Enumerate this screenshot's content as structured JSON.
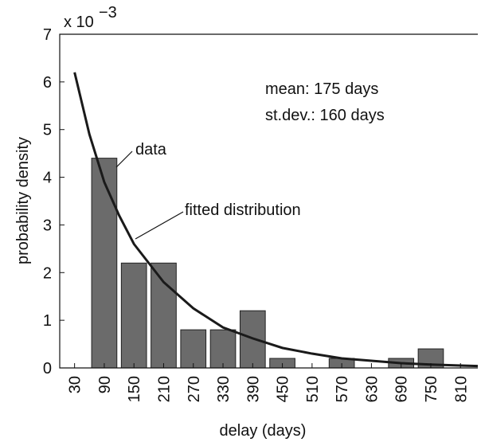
{
  "chart_data": {
    "type": "bar",
    "x_label": "delay (days)",
    "y_label": "probability density",
    "y_exponent_base": "x 10",
    "y_exponent_power": "−3",
    "x": [
      90,
      150,
      210,
      270,
      330,
      390,
      450,
      510,
      570,
      630,
      690,
      750,
      810
    ],
    "values": [
      4.4,
      2.2,
      2.2,
      0.8,
      0.8,
      1.2,
      0.2,
      0,
      0.2,
      0,
      0.2,
      0.4,
      0
    ],
    "color": "#6b6b6b",
    "curve": {
      "x": [
        30,
        60,
        90,
        120,
        150,
        210,
        270,
        330,
        390,
        450,
        510,
        570,
        630,
        690,
        750,
        810,
        845
      ],
      "y": [
        6.2,
        4.9,
        3.9,
        3.2,
        2.6,
        1.8,
        1.25,
        0.85,
        0.62,
        0.42,
        0.3,
        0.2,
        0.15,
        0.1,
        0.07,
        0.05,
        0.04
      ],
      "color": "#1a1a1a"
    },
    "xlim": [
      0,
      845
    ],
    "ylim": [
      0,
      7
    ],
    "xticks": [
      30,
      90,
      150,
      210,
      270,
      330,
      390,
      450,
      510,
      570,
      630,
      690,
      750,
      810
    ],
    "yticks": [
      0,
      1,
      2,
      3,
      4,
      5,
      6,
      7
    ],
    "annotations": [
      "mean: 175 days",
      "st.dev.: 160 days",
      "data",
      "fitted distribution"
    ]
  }
}
